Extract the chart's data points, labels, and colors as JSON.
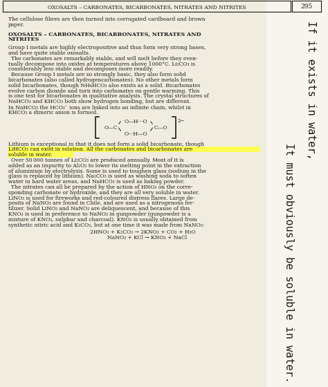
{
  "page_bg": "#f0ece0",
  "text_color": "#1a1a1a",
  "header_text": "OXOSALTS – CARBONATES, BICARBONATES, NITRATES AND NITRITES",
  "page_num": "295",
  "rotated_text_left": "It must obviously be soluble in water.",
  "rotated_text_right": "If it exists in water,",
  "highlight_color": "#ffff44",
  "fig_width": 4.74,
  "fig_height": 5.6,
  "dpi": 100
}
